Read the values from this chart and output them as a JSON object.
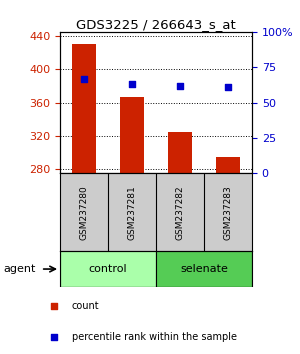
{
  "title": "GDS3225 / 266643_s_at",
  "samples": [
    "GSM237280",
    "GSM237281",
    "GSM237282",
    "GSM237283"
  ],
  "bar_values": [
    430,
    367,
    325,
    295
  ],
  "percentile_values": [
    67,
    63,
    62,
    61
  ],
  "bar_color": "#cc2200",
  "dot_color": "#0000cc",
  "ylim_left": [
    275,
    445
  ],
  "ylim_right": [
    0,
    100
  ],
  "yticks_left": [
    280,
    320,
    360,
    400,
    440
  ],
  "yticks_right": [
    0,
    25,
    50,
    75,
    100
  ],
  "yticklabels_right": [
    "0",
    "25",
    "50",
    "75",
    "100%"
  ],
  "groups": [
    {
      "label": "control",
      "samples": [
        0,
        1
      ],
      "color": "#aaffaa"
    },
    {
      "label": "selenate",
      "samples": [
        2,
        3
      ],
      "color": "#55cc55"
    }
  ],
  "agent_label": "agent",
  "legend_items": [
    {
      "label": "count",
      "color": "#cc2200",
      "marker": "s"
    },
    {
      "label": "percentile rank within the sample",
      "color": "#0000cc",
      "marker": "s"
    }
  ],
  "background_plot": "#ffffff",
  "background_samples": "#cccccc",
  "bar_bottom": 275
}
